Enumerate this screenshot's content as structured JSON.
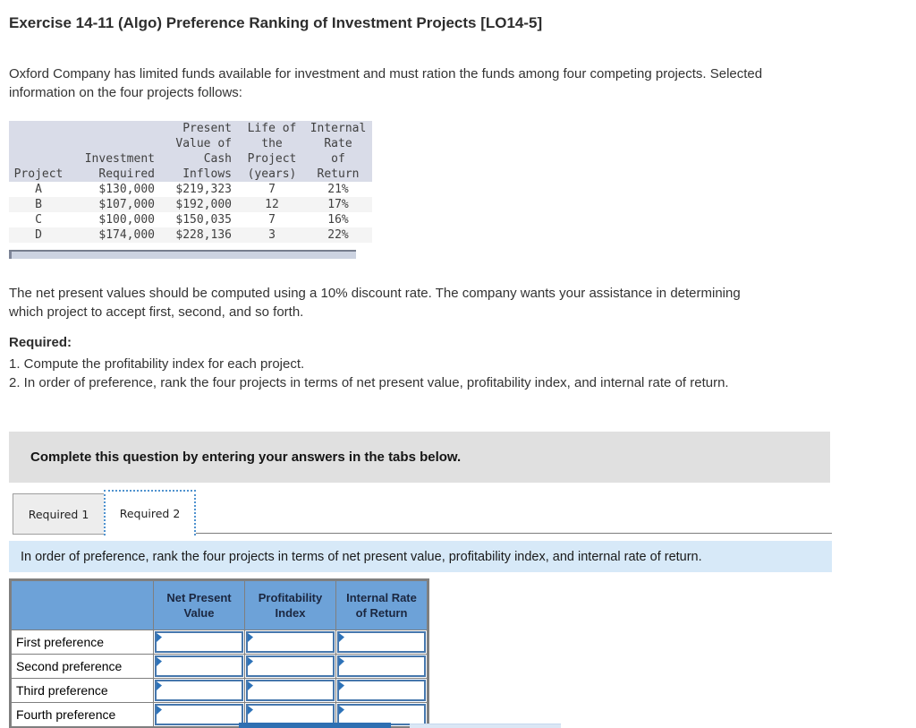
{
  "title": "Exercise 14-11 (Algo) Preference Ranking of Investment Projects [LO14-5]",
  "intro": "Oxford Company has limited funds available for investment and must ration the funds among four competing projects. Selected information on the four projects follows:",
  "project_table": {
    "headers": [
      "Project",
      "Investment\nRequired",
      "Present\nValue of\nCash\nInflows",
      "Life of\nthe\nProject\n(years)",
      "Internal\nRate\nof\nReturn"
    ],
    "rows": [
      [
        "A",
        "$130,000",
        "$219,323",
        "7",
        "21%"
      ],
      [
        "B",
        "$107,000",
        "$192,000",
        "12",
        "17%"
      ],
      [
        "C",
        "$100,000",
        "$150,035",
        "7",
        "16%"
      ],
      [
        "D",
        "$174,000",
        "$228,136",
        "3",
        "22%"
      ]
    ]
  },
  "para2": "The net present values should be computed using a 10% discount rate. The company wants your assistance in determining which project to accept first, second, and so forth.",
  "required": {
    "heading": "Required:",
    "items": [
      "1. Compute the profitability index for each project.",
      "2. In order of preference, rank the four projects in terms of net present value, profitability index, and internal rate of return."
    ]
  },
  "banner_text": "Complete this question by entering your answers in the tabs below.",
  "tabs": [
    {
      "label": "Required 1",
      "active": false
    },
    {
      "label": "Required 2",
      "active": true
    }
  ],
  "tab_instruction": "In order of preference, rank the four projects in terms of net present value, profitability index, and internal rate of return.",
  "answer_table": {
    "col_headers": [
      "Net Present\nValue",
      "Profitability\nIndex",
      "Internal Rate\nof Return"
    ],
    "row_labels": [
      "First preference",
      "Second preference",
      "Third preference",
      "Fourth preference"
    ],
    "cell_values": [
      [
        "",
        "",
        ""
      ],
      [
        "",
        "",
        ""
      ],
      [
        "",
        "",
        ""
      ],
      [
        "",
        "",
        ""
      ]
    ]
  },
  "colors": {
    "answer_header_bg": "#6da2d8",
    "answer_cell_border": "#4677ad",
    "answer_flag": "#2d72b8",
    "info_table_header_bg": "#d9dce8",
    "instruction_bar_bg": "#d7e9f8",
    "banner_bg": "#e0e0e0",
    "active_tab_outline": "#4f92cf",
    "pager_left": "#2e6fb2",
    "pager_right": "#dbe7f5"
  }
}
